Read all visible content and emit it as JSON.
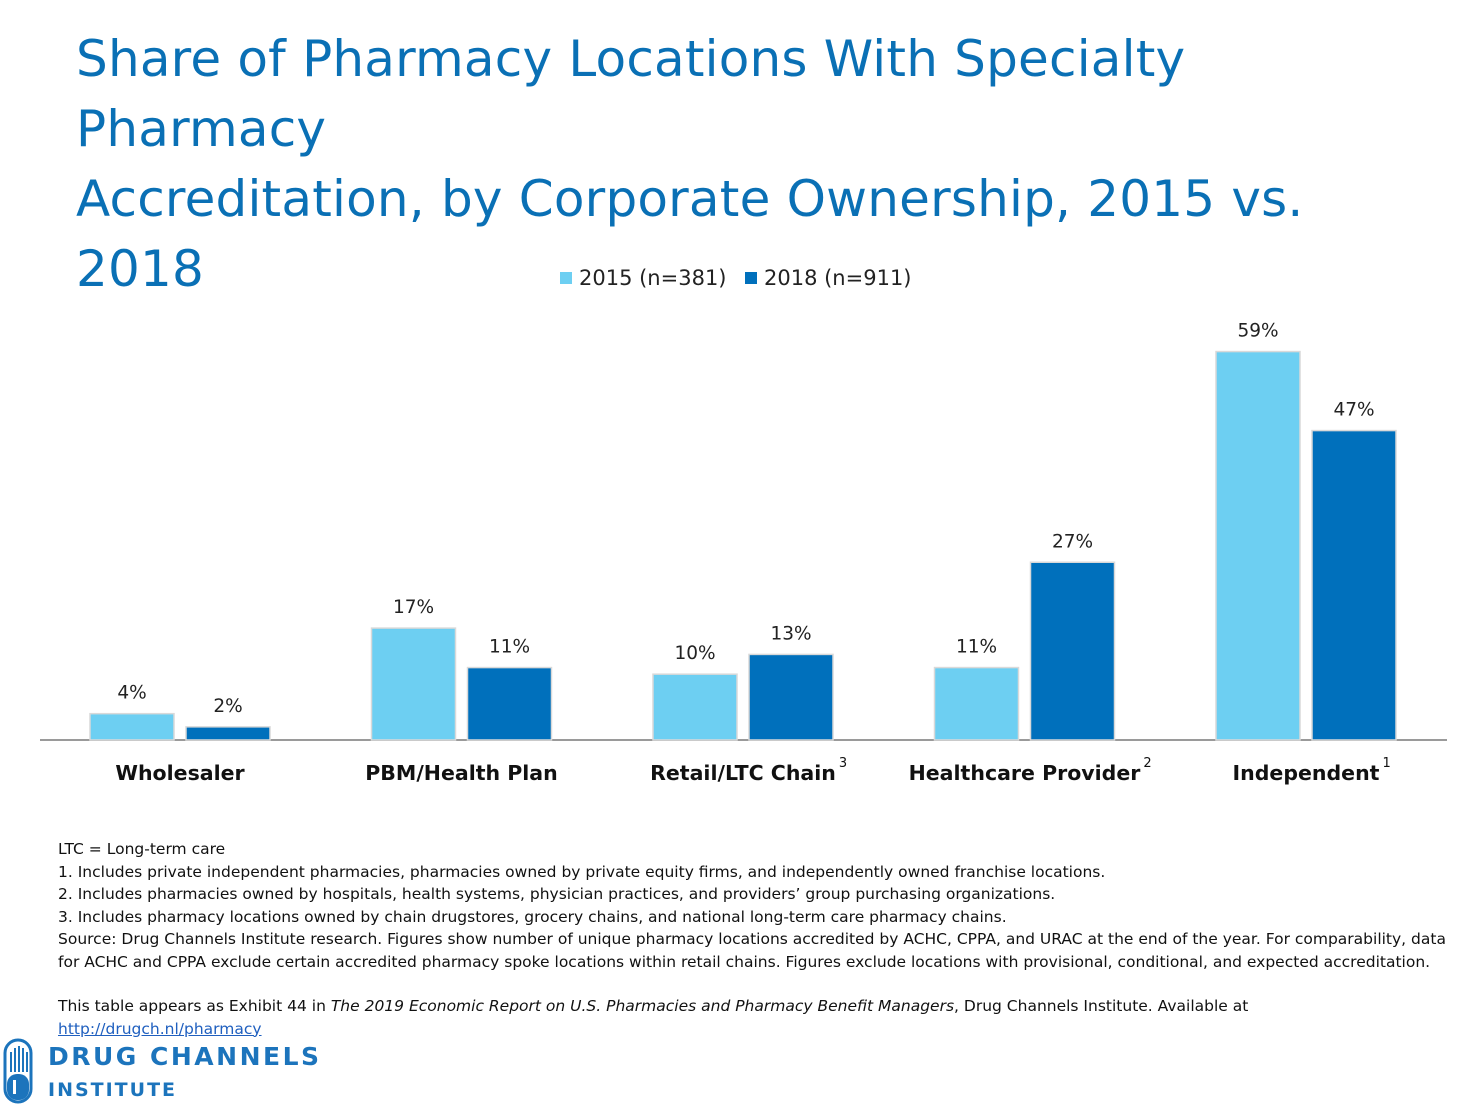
{
  "title_line1": "Share of Pharmacy Locations With Specialty Pharmacy",
  "title_line2": "Accreditation, by Corporate Ownership, 2015 vs. 2018",
  "chart_data": {
    "type": "bar",
    "title": "Share of Pharmacy Locations With Specialty Pharmacy Accreditation, by Corporate Ownership, 2015 vs. 2018",
    "categories": [
      "Wholesaler",
      "PBM/Health Plan",
      "Retail/LTC Chain",
      "Healthcare Provider",
      "Independent"
    ],
    "category_superscripts": [
      "",
      "",
      "3",
      "2",
      "1"
    ],
    "series": [
      {
        "name": "2015 (n=381)",
        "color": "#6dcff2",
        "values": [
          4,
          17,
          10,
          11,
          59
        ],
        "labels": [
          "4%",
          "17%",
          "10%",
          "11%",
          "59%"
        ]
      },
      {
        "name": "2018 (n=911)",
        "color": "#0070bc",
        "values": [
          2,
          11,
          13,
          27,
          47
        ],
        "labels": [
          "2%",
          "11%",
          "13%",
          "27%",
          "47%"
        ]
      }
    ],
    "xlabel": "",
    "ylabel": "",
    "ylim": [
      0,
      60
    ],
    "grid": false,
    "legend": "top-center"
  },
  "notes": {
    "ltc": "LTC = Long-term care",
    "n1": "1. Includes private independent pharmacies, pharmacies owned by private equity firms, and independently owned franchise locations.",
    "n2": "2. Includes pharmacies owned by hospitals, health systems, physician practices, and providers’ group purchasing organizations.",
    "n3": "3. Includes pharmacy locations owned by chain drugstores, grocery chains, and national long-term care pharmacy chains.",
    "source": "Source: Drug Channels Institute research. Figures show number of unique pharmacy locations accredited by ACHC, CPPA, and URAC at the end of the year. For comparability, data for ACHC and CPPA exclude certain accredited pharmacy spoke locations within retail chains. Figures exclude locations with provisional, conditional, and expected accreditation.",
    "exhibit_prefix": "This table appears as Exhibit 44 in ",
    "exhibit_italic": "The 2019 Economic Report on U.S. Pharmacies and Pharmacy Benefit Managers",
    "exhibit_suffix": ", Drug Channels Institute. Available at ",
    "link": "http://drugch.nl/pharmacy"
  },
  "logo": {
    "line1": "DRUG CHANNELS",
    "line2": "INSTITUTE",
    "color": "#1c74bc"
  }
}
